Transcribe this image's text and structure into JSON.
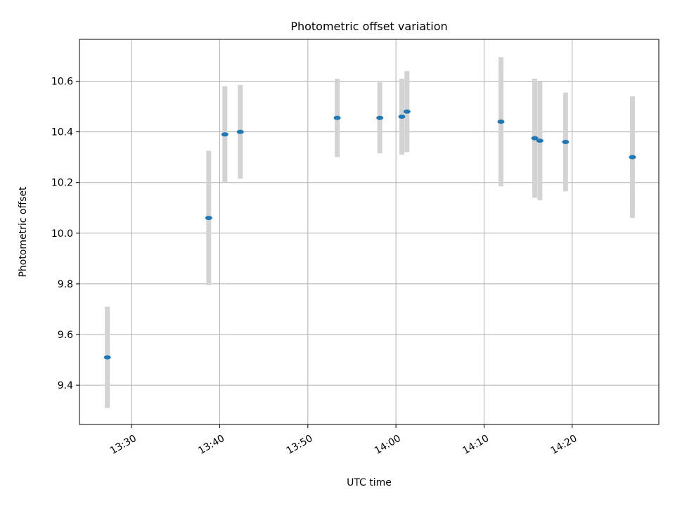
{
  "chart_data": {
    "type": "scatter",
    "title": "Photometric offset variation",
    "xlabel": "UTC time",
    "ylabel": "Photometric offset",
    "xlim": [
      "13:24:05",
      "14:29:50"
    ],
    "ylim": [
      9.245,
      10.765
    ],
    "grid": true,
    "x_ticks": [
      "13:30",
      "13:40",
      "13:50",
      "14:00",
      "14:10",
      "14:20"
    ],
    "y_ticks": [
      "9.4",
      "9.6",
      "9.8",
      "10.0",
      "10.2",
      "10.4",
      "10.6"
    ],
    "points": [
      {
        "x": "13:27:15",
        "y": 9.51,
        "err": 0.2
      },
      {
        "x": "13:38:45",
        "y": 10.06,
        "err": 0.265
      },
      {
        "x": "13:40:35",
        "y": 10.39,
        "err": 0.19
      },
      {
        "x": "13:42:20",
        "y": 10.4,
        "err": 0.185
      },
      {
        "x": "13:53:20",
        "y": 10.455,
        "err": 0.155
      },
      {
        "x": "13:58:10",
        "y": 10.455,
        "err": 0.14
      },
      {
        "x": "14:00:40",
        "y": 10.46,
        "err": 0.15
      },
      {
        "x": "14:01:15",
        "y": 10.48,
        "err": 0.16
      },
      {
        "x": "14:11:55",
        "y": 10.44,
        "err": 0.255
      },
      {
        "x": "14:15:45",
        "y": 10.375,
        "err": 0.235
      },
      {
        "x": "14:16:20",
        "y": 10.365,
        "err": 0.235
      },
      {
        "x": "14:19:15",
        "y": 10.36,
        "err": 0.195
      },
      {
        "x": "14:26:50",
        "y": 10.3,
        "err": 0.24
      }
    ],
    "marker_color": "#1f77b4",
    "errorbar_color": "#d3d3d3"
  }
}
